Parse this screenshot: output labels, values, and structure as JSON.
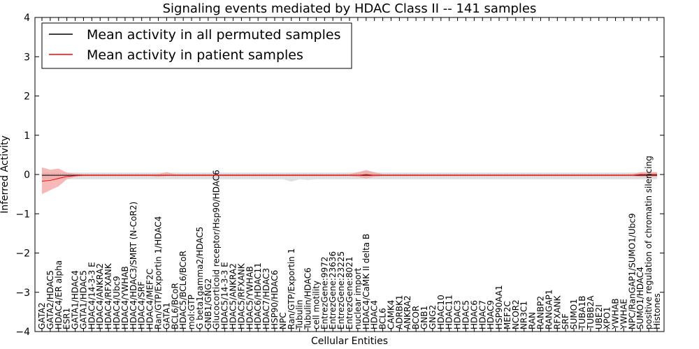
{
  "chart_data": {
    "type": "line",
    "title": "Signaling events mediated by HDAC Class II -- 141 samples",
    "xlabel": "Cellular Entities",
    "ylabel": "Inferred Activity",
    "ylim": [
      -4,
      4
    ],
    "yticks": [
      -4,
      -3,
      -2,
      -1,
      0,
      1,
      2,
      3,
      4
    ],
    "ytick_labels": [
      "−4",
      "−3",
      "−2",
      "−1",
      "0",
      "1",
      "2",
      "3",
      "4"
    ],
    "legend_location": "top-left",
    "categories": [
      "GATA2",
      "GATA2/HDAC5",
      "HDAC4/ER alpha",
      "ESR1",
      "GATA1/HDAC4",
      "GATA1/HDAC5",
      "HDAC4/14-3-3 E",
      "HDAC4/ANKRA2",
      "HDAC4/RFXANK",
      "HDAC4/Ubc9",
      "HDAC4/YWHAB",
      "HDAC4/HDAC3/SMRT (N-CoR2)",
      "HDAC4/SRF",
      "HDAC4/MEF2C",
      "Ran/GTP/Exportin 1/HDAC4",
      "GATA1",
      "BCL6/BCoR",
      "HDAC5/BCL6/BCoR",
      "mol:GTP",
      "G beta1gamma2/HDAC5",
      "GNB1/GNG2",
      "Glucocorticoid receptor/Hsp90/HDAC6",
      "HDAC5/14-3-3 E",
      "HDAC5/ANKRA2",
      "HDAC5/RFXANK",
      "HDAC5/YWHAB",
      "HDAC6/HDAC11",
      "HDAC7/HDAC3",
      "HSP90/HDAC6",
      "NPC",
      "Ran/GTP/Exportin 1",
      "Tubulin",
      "Tubulin/HDAC6",
      "cell motility",
      "EntrezGene:9972",
      "EntrezGene:23636",
      "EntrezGene:23225",
      "EntrezGene:8021",
      "nuclear import",
      "HDAC4/CaMK II delta B",
      "HDAC4",
      "BCL6",
      "CAMK4",
      "ADRBK1",
      "ANKRA2",
      "BCOR",
      "GNB1",
      "GNG2",
      "HDAC10",
      "HDAC11",
      "HDAC3",
      "HDAC5",
      "HDAC6",
      "HDAC7",
      "HDAC9",
      "HSP90AA1",
      "MEF2C",
      "NCOR2",
      "NR3C1",
      "RAN",
      "RANBP2",
      "RANGAP1",
      "RFXANK",
      "SRF",
      "SUMO1",
      "TUBA1B",
      "TUBB2A",
      "UBE2I",
      "XPO1",
      "YWHAB",
      "YWHAE",
      "NPC/RanGAP1/SUMO1/Ubc9",
      "SUMO1/HDAC4",
      "positive regulation of chromatin silencing",
      "Histones"
    ],
    "series": [
      {
        "name": "Mean activity in all permuted samples",
        "color": "#000000",
        "band_color": "#d9d9d9",
        "values": [
          -0.02,
          -0.02,
          -0.02,
          -0.02,
          -0.02,
          -0.02,
          -0.02,
          -0.02,
          -0.02,
          -0.02,
          -0.02,
          -0.02,
          -0.02,
          -0.02,
          -0.02,
          -0.02,
          -0.02,
          -0.02,
          -0.02,
          -0.02,
          -0.02,
          -0.02,
          -0.02,
          -0.02,
          -0.02,
          -0.02,
          -0.02,
          -0.02,
          -0.02,
          -0.02,
          -0.02,
          -0.02,
          -0.02,
          -0.02,
          -0.02,
          -0.02,
          -0.02,
          -0.02,
          -0.02,
          -0.02,
          -0.02,
          -0.02,
          -0.02,
          -0.02,
          -0.02,
          -0.02,
          -0.02,
          -0.02,
          -0.02,
          -0.02,
          -0.02,
          -0.02,
          -0.02,
          -0.02,
          -0.02,
          -0.02,
          -0.02,
          -0.02,
          -0.02,
          -0.02,
          -0.02,
          -0.02,
          -0.02,
          -0.02,
          -0.02,
          -0.02,
          -0.02,
          -0.02,
          -0.02,
          -0.02,
          -0.02,
          -0.02,
          -0.02,
          -0.02,
          -0.02
        ],
        "lower": [
          -0.12,
          -0.12,
          -0.12,
          -0.12,
          -0.12,
          -0.12,
          -0.12,
          -0.12,
          -0.12,
          -0.12,
          -0.12,
          -0.12,
          -0.12,
          -0.12,
          -0.12,
          -0.12,
          -0.12,
          -0.12,
          -0.12,
          -0.12,
          -0.12,
          -0.12,
          -0.12,
          -0.12,
          -0.12,
          -0.12,
          -0.12,
          -0.12,
          -0.12,
          -0.12,
          -0.18,
          -0.12,
          -0.14,
          -0.12,
          -0.12,
          -0.12,
          -0.12,
          -0.12,
          -0.12,
          -0.12,
          -0.12,
          -0.12,
          -0.12,
          -0.12,
          -0.12,
          -0.12,
          -0.12,
          -0.12,
          -0.12,
          -0.12,
          -0.12,
          -0.12,
          -0.12,
          -0.12,
          -0.12,
          -0.12,
          -0.12,
          -0.12,
          -0.12,
          -0.12,
          -0.12,
          -0.12,
          -0.12,
          -0.12,
          -0.12,
          -0.12,
          -0.12,
          -0.12,
          -0.12,
          -0.12,
          -0.12,
          -0.12,
          -0.12,
          -0.12,
          -0.12
        ],
        "upper": [
          0.05,
          0.05,
          0.05,
          0.05,
          0.05,
          0.05,
          0.05,
          0.05,
          0.05,
          0.05,
          0.05,
          0.05,
          0.05,
          0.05,
          0.05,
          0.05,
          0.05,
          0.05,
          0.05,
          0.05,
          0.05,
          0.05,
          0.05,
          0.05,
          0.05,
          0.05,
          0.05,
          0.05,
          0.05,
          0.05,
          0.05,
          0.05,
          0.05,
          0.05,
          0.05,
          0.05,
          0.05,
          0.05,
          0.05,
          0.12,
          0.05,
          0.05,
          0.05,
          0.05,
          0.05,
          0.05,
          0.05,
          0.05,
          0.05,
          0.05,
          0.05,
          0.05,
          0.05,
          0.05,
          0.05,
          0.05,
          0.05,
          0.05,
          0.05,
          0.05,
          0.05,
          0.05,
          0.05,
          0.05,
          0.05,
          0.05,
          0.05,
          0.05,
          0.05,
          0.05,
          0.05,
          0.05,
          0.05,
          0.05,
          0.05
        ]
      },
      {
        "name": "Mean activity in patient samples",
        "color": "#ff0000",
        "band_color": "#f4a0a0",
        "values": [
          -0.17,
          -0.15,
          -0.1,
          -0.05,
          -0.03,
          -0.02,
          -0.02,
          -0.02,
          -0.02,
          -0.02,
          -0.02,
          -0.02,
          -0.02,
          -0.02,
          -0.02,
          -0.02,
          -0.02,
          -0.02,
          -0.02,
          -0.02,
          -0.02,
          -0.02,
          -0.02,
          -0.02,
          -0.02,
          -0.02,
          -0.02,
          -0.02,
          -0.02,
          -0.02,
          -0.02,
          -0.02,
          -0.02,
          -0.02,
          -0.02,
          -0.02,
          -0.02,
          -0.02,
          -0.02,
          0.0,
          -0.02,
          -0.02,
          -0.02,
          -0.02,
          -0.02,
          -0.02,
          -0.02,
          -0.02,
          -0.02,
          -0.02,
          -0.02,
          -0.02,
          -0.02,
          -0.02,
          -0.02,
          -0.02,
          -0.02,
          -0.02,
          -0.02,
          -0.02,
          -0.02,
          -0.02,
          -0.02,
          -0.02,
          -0.02,
          -0.02,
          -0.02,
          -0.02,
          -0.02,
          -0.02,
          -0.02,
          -0.02,
          0.0,
          0.0,
          0.0
        ],
        "lower": [
          -0.5,
          -0.4,
          -0.3,
          -0.12,
          -0.06,
          -0.04,
          -0.04,
          -0.04,
          -0.04,
          -0.04,
          -0.04,
          -0.04,
          -0.04,
          -0.04,
          -0.06,
          -0.04,
          -0.04,
          -0.04,
          -0.04,
          -0.04,
          -0.04,
          -0.04,
          -0.04,
          -0.04,
          -0.04,
          -0.04,
          -0.04,
          -0.04,
          -0.04,
          -0.04,
          -0.04,
          -0.04,
          -0.04,
          -0.04,
          -0.04,
          -0.04,
          -0.04,
          -0.04,
          -0.06,
          -0.1,
          -0.06,
          -0.04,
          -0.04,
          -0.04,
          -0.04,
          -0.04,
          -0.04,
          -0.04,
          -0.04,
          -0.04,
          -0.04,
          -0.04,
          -0.04,
          -0.04,
          -0.04,
          -0.04,
          -0.04,
          -0.04,
          -0.04,
          -0.04,
          -0.04,
          -0.04,
          -0.04,
          -0.04,
          -0.04,
          -0.04,
          -0.04,
          -0.04,
          -0.04,
          -0.04,
          -0.04,
          -0.04,
          -0.06,
          -0.06,
          -0.06
        ],
        "upper": [
          0.18,
          0.12,
          0.15,
          0.05,
          0.02,
          0.01,
          0.01,
          0.01,
          0.01,
          0.01,
          0.01,
          0.01,
          0.01,
          0.01,
          0.01,
          0.06,
          0.01,
          0.01,
          0.01,
          0.01,
          0.01,
          0.01,
          0.01,
          0.01,
          0.01,
          0.01,
          0.01,
          0.01,
          0.01,
          0.01,
          0.01,
          0.01,
          0.01,
          0.01,
          0.01,
          0.01,
          0.01,
          0.01,
          0.06,
          0.1,
          0.06,
          0.01,
          0.01,
          0.01,
          0.01,
          0.01,
          0.01,
          0.01,
          0.01,
          0.01,
          0.01,
          0.01,
          0.01,
          0.01,
          0.01,
          0.01,
          0.01,
          0.01,
          0.01,
          0.01,
          0.01,
          0.01,
          0.01,
          0.01,
          0.01,
          0.01,
          0.01,
          0.01,
          0.01,
          0.01,
          0.01,
          0.01,
          0.06,
          0.06,
          0.06
        ]
      }
    ]
  }
}
